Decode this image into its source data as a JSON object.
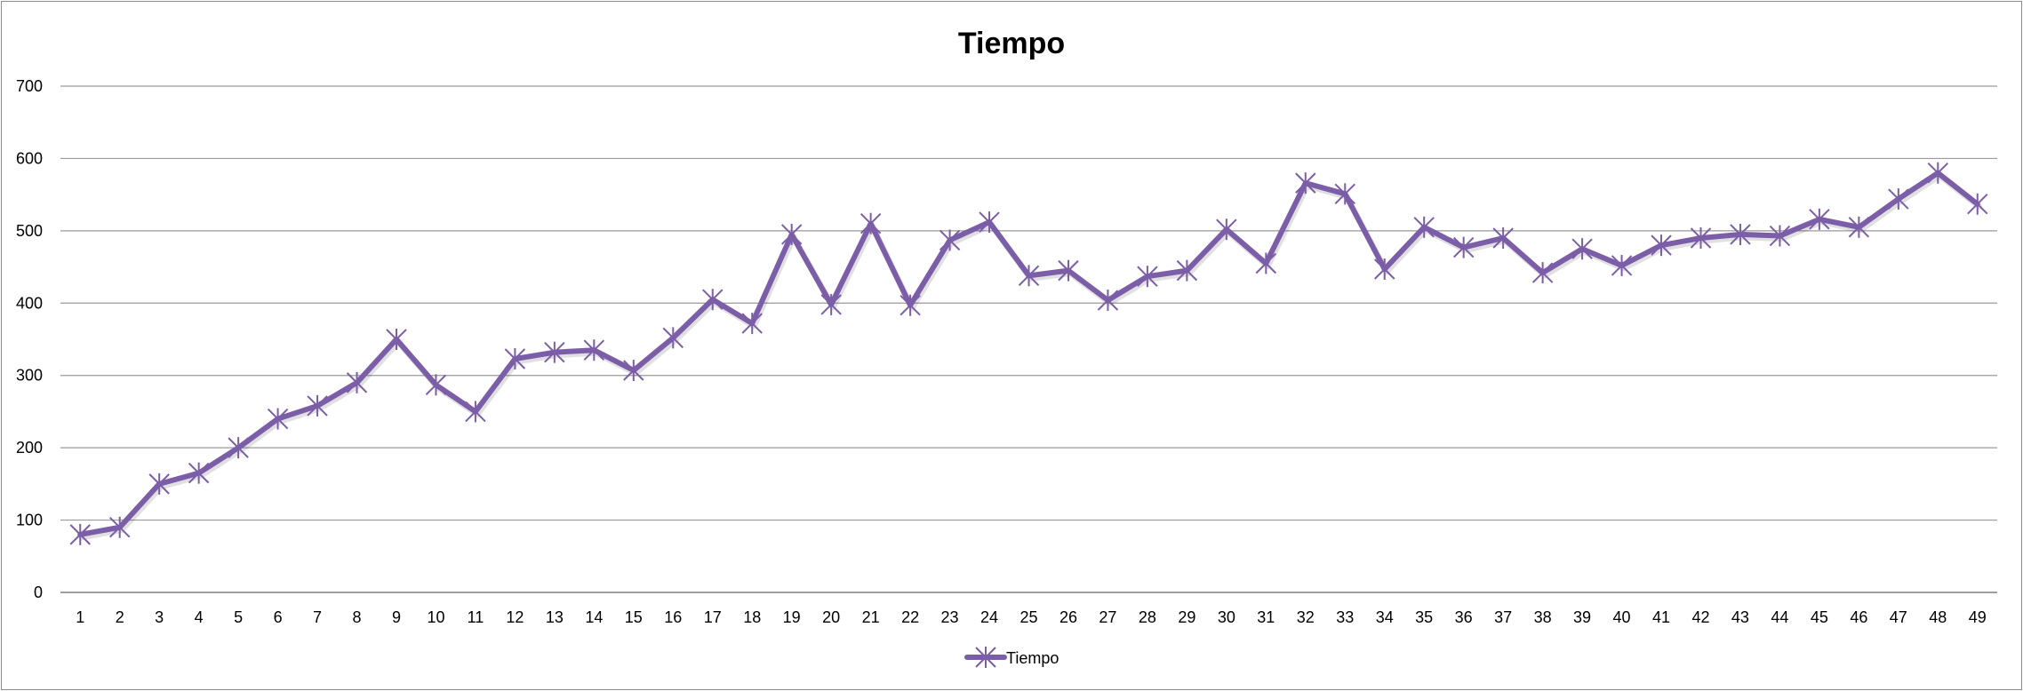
{
  "chart_data": {
    "type": "line",
    "title": "Tiempo",
    "xlabel": "",
    "ylabel": "",
    "ylim": [
      0,
      700
    ],
    "yticks": [
      "0",
      "100",
      "200",
      "300",
      "400",
      "500",
      "600",
      "700"
    ],
    "categories": [
      "1",
      "2",
      "3",
      "4",
      "5",
      "6",
      "7",
      "8",
      "9",
      "10",
      "11",
      "12",
      "13",
      "14",
      "15",
      "16",
      "17",
      "18",
      "19",
      "20",
      "21",
      "22",
      "23",
      "24",
      "25",
      "26",
      "27",
      "28",
      "29",
      "30",
      "31",
      "32",
      "33",
      "34",
      "35",
      "36",
      "37",
      "38",
      "39",
      "40",
      "41",
      "42",
      "43",
      "44",
      "45",
      "46",
      "47",
      "48",
      "49"
    ],
    "series": [
      {
        "name": "Tiempo",
        "color": "#7b5ea7",
        "marker": "asterisk",
        "values": [
          80,
          90,
          150,
          165,
          200,
          240,
          258,
          290,
          350,
          287,
          250,
          323,
          332,
          335,
          307,
          352,
          405,
          372,
          495,
          398,
          510,
          397,
          487,
          512,
          438,
          445,
          404,
          437,
          445,
          502,
          455,
          566,
          551,
          447,
          505,
          477,
          490,
          442,
          475,
          452,
          480,
          490,
          495,
          493,
          516,
          505,
          544,
          580,
          537
        ]
      }
    ],
    "grid": true,
    "legend": "bottom"
  }
}
